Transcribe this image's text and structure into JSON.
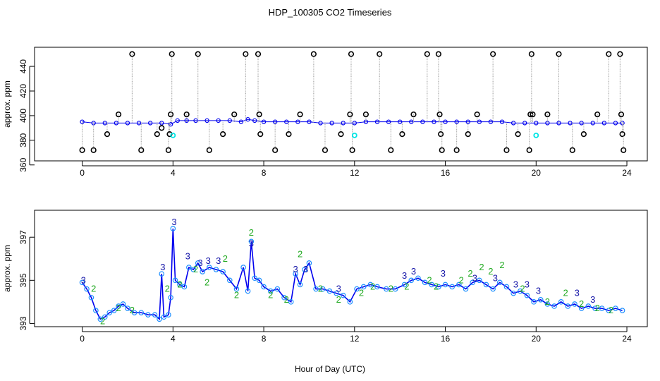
{
  "chart_data": [
    {
      "type": "scatter",
      "panel": "top",
      "title": "HDP_100305  CO2 Timeseries",
      "xlabel": "",
      "ylabel": "approx. ppm",
      "xlim": [
        -2.1,
        24.9
      ],
      "ylim": [
        363.3,
        455.5
      ],
      "xticks": [
        0,
        4,
        8,
        12,
        16,
        20,
        24
      ],
      "yticks": [
        360,
        380,
        400,
        420,
        440
      ],
      "grid": false,
      "series": [
        {
          "name": "baseline (blue)",
          "color": "#0000ee",
          "x": [
            0.0,
            0.5,
            1.0,
            1.5,
            2.0,
            2.5,
            3.0,
            3.5,
            3.9,
            4.2,
            4.6,
            5.0,
            5.5,
            6.0,
            6.5,
            7.0,
            7.3,
            7.6,
            8.0,
            8.5,
            9.0,
            9.5,
            10.0,
            10.5,
            11.0,
            11.5,
            12.0,
            12.5,
            13.0,
            13.5,
            14.0,
            14.5,
            15.0,
            15.5,
            16.0,
            16.5,
            17.0,
            17.5,
            18.0,
            18.5,
            19.0,
            19.5,
            20.0,
            20.5,
            21.0,
            21.5,
            22.0,
            22.5,
            23.0,
            23.5,
            23.8
          ],
          "y": [
            395,
            394,
            394,
            394,
            394,
            394,
            394,
            394,
            393,
            396,
            396,
            396,
            396,
            396,
            396,
            395,
            397,
            396,
            395,
            395,
            395,
            395,
            395,
            394,
            394,
            394,
            394,
            395,
            395,
            395,
            395,
            395,
            395,
            395,
            395,
            395,
            395,
            395,
            395,
            395,
            394,
            394,
            394,
            394,
            394,
            394,
            394,
            394,
            394,
            394,
            394
          ]
        },
        {
          "name": "flagged (black circles)",
          "color": "#000000",
          "x": [
            0.0,
            0.5,
            1.1,
            1.6,
            2.2,
            2.6,
            3.3,
            3.5,
            3.8,
            3.85,
            3.9,
            3.95,
            4.6,
            5.1,
            5.6,
            6.2,
            6.7,
            7.2,
            7.75,
            7.8,
            7.85,
            8.5,
            9.1,
            9.6,
            10.2,
            10.7,
            11.4,
            11.8,
            11.85,
            11.9,
            12.5,
            13.1,
            13.6,
            14.1,
            14.6,
            15.2,
            15.7,
            15.75,
            15.8,
            15.85,
            16.5,
            17.0,
            17.4,
            18.1,
            18.7,
            19.2,
            19.7,
            19.75,
            19.8,
            19.85,
            20.5,
            21.0,
            21.6,
            22.1,
            22.7,
            23.2,
            23.7,
            23.75,
            23.8,
            23.85
          ],
          "y": [
            372,
            372,
            385,
            401,
            450,
            372,
            385,
            390,
            372,
            385,
            401,
            450,
            401,
            450,
            372,
            385,
            401,
            450,
            450,
            401,
            385,
            372,
            385,
            401,
            450,
            372,
            385,
            401,
            450,
            372,
            401,
            450,
            372,
            385,
            401,
            450,
            450,
            401,
            385,
            372,
            372,
            385,
            401,
            450,
            372,
            385,
            372,
            401,
            450,
            401,
            401,
            450,
            372,
            385,
            401,
            450,
            450,
            401,
            385,
            372
          ]
        },
        {
          "name": "cyan points",
          "color": "#00e5e5",
          "x": [
            4.0,
            12.0,
            20.0
          ],
          "y": [
            384,
            384,
            384
          ]
        }
      ]
    },
    {
      "type": "line",
      "panel": "bottom",
      "xlabel": "Hour of Day (UTC)",
      "ylabel": "approx. ppm",
      "xlim": [
        -2.1,
        24.9
      ],
      "ylim": [
        392.85,
        398.25
      ],
      "xticks": [
        0,
        4,
        8,
        12,
        16,
        20,
        24
      ],
      "yticks": [
        393,
        395,
        397
      ],
      "grid": false,
      "series": [
        {
          "name": "CO2 (line + circles)",
          "color": "#0000ee",
          "marker_color": "#1e90ff",
          "x": [
            0.0,
            0.2,
            0.4,
            0.6,
            0.8,
            1.0,
            1.2,
            1.4,
            1.6,
            1.8,
            2.0,
            2.3,
            2.6,
            2.9,
            3.2,
            3.4,
            3.5,
            3.6,
            3.8,
            3.9,
            4.0,
            4.1,
            4.3,
            4.5,
            4.7,
            4.9,
            5.1,
            5.3,
            5.6,
            5.9,
            6.2,
            6.5,
            6.8,
            7.1,
            7.3,
            7.45,
            7.6,
            7.8,
            8.0,
            8.3,
            8.6,
            8.9,
            9.2,
            9.4,
            9.6,
            9.8,
            10.0,
            10.3,
            10.6,
            10.9,
            11.2,
            11.5,
            11.8,
            12.1,
            12.4,
            12.7,
            13.0,
            13.4,
            13.8,
            14.2,
            14.5,
            14.8,
            15.1,
            15.4,
            15.7,
            16.0,
            16.3,
            16.6,
            16.9,
            17.2,
            17.5,
            17.8,
            18.1,
            18.4,
            18.7,
            19.0,
            19.3,
            19.6,
            19.9,
            20.2,
            20.5,
            20.8,
            21.1,
            21.4,
            21.7,
            22.0,
            22.3,
            22.6,
            22.9,
            23.2,
            23.5,
            23.8
          ],
          "y": [
            394.9,
            394.6,
            394.2,
            393.6,
            393.2,
            393.3,
            393.5,
            393.6,
            393.8,
            393.9,
            393.7,
            393.5,
            393.5,
            393.4,
            393.4,
            393.2,
            395.3,
            393.3,
            393.4,
            394.2,
            397.4,
            395.0,
            394.8,
            394.7,
            395.6,
            395.5,
            395.8,
            395.4,
            395.6,
            395.5,
            395.4,
            395.0,
            394.6,
            395.6,
            394.5,
            396.8,
            395.1,
            395.0,
            394.7,
            394.5,
            394.6,
            394.2,
            394.0,
            395.3,
            394.8,
            395.5,
            395.8,
            394.6,
            394.6,
            394.5,
            394.4,
            394.3,
            394.0,
            394.6,
            394.7,
            394.8,
            394.7,
            394.6,
            394.6,
            394.8,
            395.0,
            395.1,
            394.9,
            394.8,
            394.7,
            394.8,
            394.7,
            394.8,
            394.6,
            394.9,
            395.0,
            394.8,
            394.6,
            394.9,
            394.7,
            394.4,
            394.5,
            394.3,
            394.0,
            394.1,
            393.9,
            393.8,
            394.0,
            393.8,
            393.9,
            393.7,
            393.8,
            393.7,
            393.7,
            393.6,
            393.7,
            393.6
          ]
        },
        {
          "name": "label '3'",
          "color": "#1515a8",
          "label": "3",
          "x": [
            0.05,
            3.55,
            4.05,
            4.65,
            5.2,
            5.55,
            6.0,
            7.45,
            9.4,
            9.85,
            11.3,
            14.2,
            14.6,
            15.9,
            17.3,
            18.2,
            19.1,
            19.6,
            20.1,
            21.8,
            22.5
          ],
          "y": [
            395.0,
            395.6,
            397.7,
            396.1,
            395.8,
            395.9,
            395.9,
            396.7,
            395.5,
            395.5,
            394.6,
            395.2,
            395.4,
            395.3,
            395.1,
            395.1,
            394.8,
            394.8,
            394.5,
            394.4,
            394.1
          ]
        },
        {
          "name": "label '2'",
          "color": "#22aa22",
          "label": "2",
          "x": [
            0.5,
            0.9,
            1.6,
            2.2,
            3.75,
            4.3,
            5.0,
            5.5,
            6.3,
            6.8,
            7.45,
            8.3,
            9.0,
            9.6,
            10.5,
            11.3,
            12.3,
            12.8,
            13.6,
            14.3,
            15.3,
            15.6,
            16.7,
            17.1,
            17.6,
            18.0,
            18.5,
            19.4,
            20.5,
            21.3,
            22.0,
            22.7,
            23.3
          ],
          "y": [
            394.6,
            393.1,
            393.7,
            393.6,
            394.6,
            394.8,
            395.5,
            394.9,
            396.0,
            394.3,
            397.2,
            394.3,
            394.1,
            396.2,
            394.6,
            394.1,
            394.4,
            394.7,
            394.6,
            394.7,
            395.0,
            394.7,
            395.0,
            395.3,
            395.6,
            395.4,
            395.7,
            394.6,
            394.0,
            394.4,
            393.9,
            393.7,
            393.6
          ]
        }
      ]
    }
  ]
}
